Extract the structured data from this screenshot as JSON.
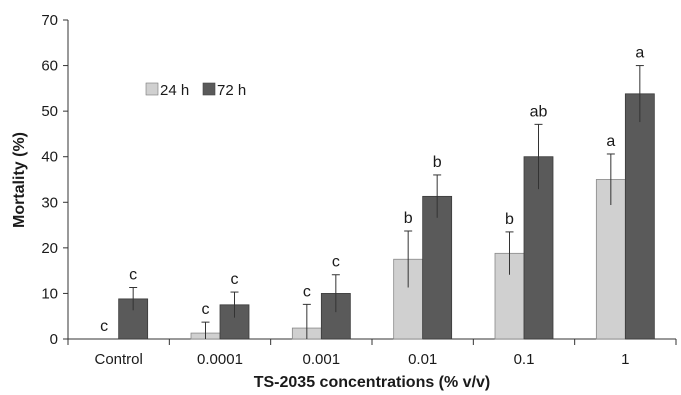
{
  "chart_data": {
    "type": "bar",
    "title": "",
    "xlabel": "TS-2035 concentrations (% v/v)",
    "ylabel": "Mortality (%)",
    "ylim": [
      0,
      70
    ],
    "yticks": [
      0,
      10,
      20,
      30,
      40,
      50,
      60,
      70
    ],
    "ytick_labels": [
      "0",
      "10",
      "20",
      "30",
      "40",
      "50",
      "60",
      "70"
    ],
    "grid": false,
    "legend_position": "top-left",
    "categories": [
      "Control",
      "0.0001",
      "0.001",
      "0.01",
      "0.1",
      "1"
    ],
    "series": [
      {
        "name": "24 h",
        "color": "#d0d0d0",
        "values": [
          0,
          1.3,
          2.4,
          17.5,
          18.8,
          35.0
        ],
        "errors": [
          0,
          2.4,
          5.2,
          6.2,
          4.7,
          5.6
        ],
        "letters": [
          "c",
          "c",
          "c",
          "b",
          "b",
          "a"
        ]
      },
      {
        "name": "72 h",
        "color": "#5a5a5a",
        "values": [
          8.8,
          7.5,
          10.0,
          31.3,
          40.0,
          53.8
        ],
        "errors": [
          2.5,
          2.8,
          4.1,
          4.7,
          7.1,
          6.2
        ],
        "letters": [
          "c",
          "c",
          "c",
          "b",
          "ab",
          "a"
        ]
      }
    ]
  }
}
